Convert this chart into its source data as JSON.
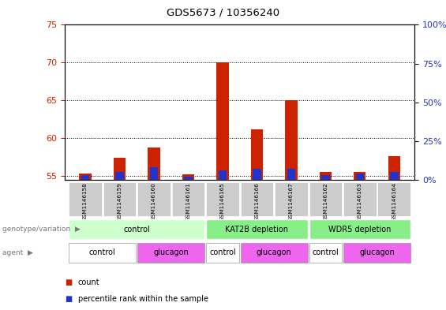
{
  "title": "GDS5673 / 10356240",
  "samples": [
    "GSM1146158",
    "GSM1146159",
    "GSM1146160",
    "GSM1146161",
    "GSM1146165",
    "GSM1146166",
    "GSM1146167",
    "GSM1146162",
    "GSM1146163",
    "GSM1146164"
  ],
  "count_values": [
    55.3,
    57.4,
    58.8,
    55.2,
    70.0,
    61.2,
    65.0,
    55.5,
    55.5,
    57.6
  ],
  "percentile_values": [
    3,
    5,
    8,
    2,
    6,
    7,
    7,
    3,
    4,
    5
  ],
  "ylim_left": [
    54.5,
    75.0
  ],
  "ylim_right": [
    0,
    100
  ],
  "yticks_left": [
    55,
    60,
    65,
    70,
    75
  ],
  "yticks_right": [
    0,
    25,
    50,
    75,
    100
  ],
  "bar_base": 54.5,
  "count_color": "#cc2200",
  "percentile_color": "#2233cc",
  "geno_groups": [
    {
      "label": "control",
      "indices": [
        0,
        1,
        2,
        3
      ],
      "color": "#ccffcc"
    },
    {
      "label": "KAT2B depletion",
      "indices": [
        4,
        5,
        6
      ],
      "color": "#88ee88"
    },
    {
      "label": "WDR5 depletion",
      "indices": [
        7,
        8,
        9
      ],
      "color": "#88ee88"
    }
  ],
  "agent_groups": [
    {
      "label": "control",
      "indices": [
        0,
        1
      ],
      "color": "#ffffff"
    },
    {
      "label": "glucagon",
      "indices": [
        2,
        3
      ],
      "color": "#ee66ee"
    },
    {
      "label": "control",
      "indices": [
        4
      ],
      "color": "#ffffff"
    },
    {
      "label": "glucagon",
      "indices": [
        5,
        6
      ],
      "color": "#ee66ee"
    },
    {
      "label": "control",
      "indices": [
        7
      ],
      "color": "#ffffff"
    },
    {
      "label": "glucagon",
      "indices": [
        8,
        9
      ],
      "color": "#ee66ee"
    }
  ],
  "legend_count_label": "count",
  "legend_pct_label": "percentile rank within the sample",
  "left_ylabel_color": "#cc2200",
  "right_ylabel_color": "#2233cc",
  "geno_label": "genotype/variation",
  "agent_label": "agent"
}
